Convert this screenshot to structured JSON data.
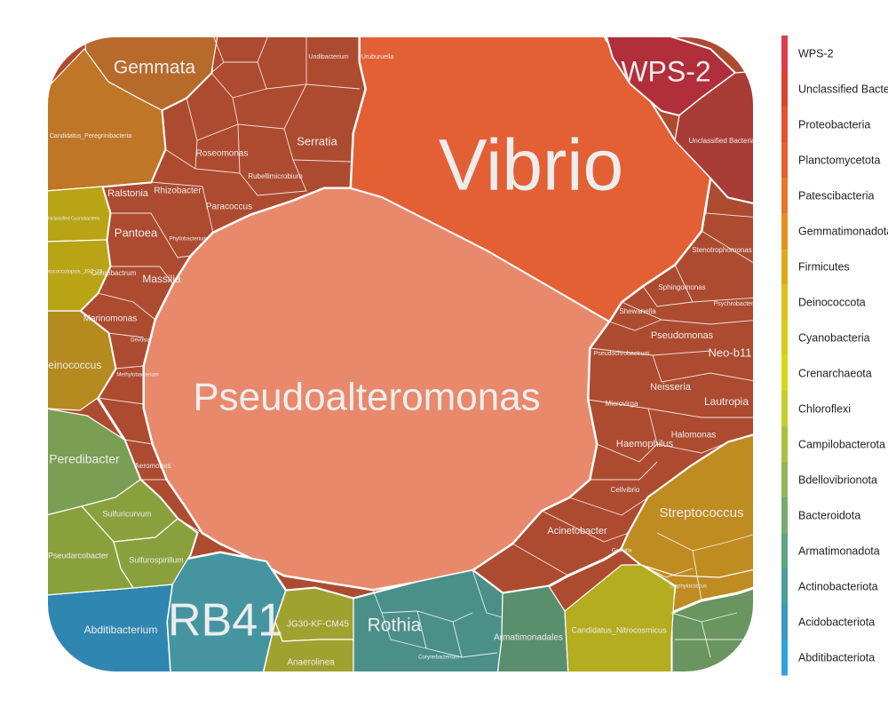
{
  "chart_data": {
    "type": "voronoi-treemap",
    "title": "",
    "legend": {
      "placement": "right",
      "items": [
        {
          "label": "WPS-2",
          "color": "#dd3c4a"
        },
        {
          "label": "Unclassified Bacteria",
          "color": "#d8452f"
        },
        {
          "label": "Proteobacteria",
          "color": "#e2532e"
        },
        {
          "label": "Planctomycetota",
          "color": "#e3612c"
        },
        {
          "label": "Patescibacteria",
          "color": "#e67628"
        },
        {
          "label": "Gemmatimonadota",
          "color": "#e4901f"
        },
        {
          "label": "Firmicutes",
          "color": "#dfa81a"
        },
        {
          "label": "Deinococcota",
          "color": "#dcc216"
        },
        {
          "label": "Cyanobacteria",
          "color": "#d9cc18"
        },
        {
          "label": "Crenarchaeota",
          "color": "#d8d61a"
        },
        {
          "label": "Chloroflexi",
          "color": "#c4cf2c"
        },
        {
          "label": "Campilobacterota",
          "color": "#a8c240"
        },
        {
          "label": "Bdellovibrionota",
          "color": "#8fb756"
        },
        {
          "label": "Bacteroidota",
          "color": "#76ac6c"
        },
        {
          "label": "Armatimonadota",
          "color": "#5ea582"
        },
        {
          "label": "Actinobacteriota",
          "color": "#4a9f9c"
        },
        {
          "label": "Acidobacteriota",
          "color": "#3a9ac0"
        },
        {
          "label": "Abditibacteriota",
          "color": "#33a2de"
        }
      ]
    },
    "cells": [
      {
        "label": "Vibrio",
        "group": "Proteobacteria",
        "size": 52,
        "color": "#e36035",
        "label_color": "#ededed"
      },
      {
        "label": "Pseudoalteromonas",
        "group": "Proteobacteria",
        "size": 34,
        "color": "#e8896b",
        "label_color": "#ededed"
      },
      {
        "label": "RB41",
        "group": "Acidobacteriota",
        "size": 30,
        "color": "#4595a1",
        "label_color": "#ededed"
      },
      {
        "label": "WPS-2",
        "group": "WPS-2",
        "size": 24,
        "color": "#b12f3a",
        "label_color": "#ededed"
      },
      {
        "label": "Gemmata",
        "group": "Planctomycetota",
        "size": 15,
        "color": "#b86a2b",
        "label_color": "#ededed"
      },
      {
        "label": "Rothia",
        "group": "Actinobacteriota",
        "size": 15,
        "color": "#4b8f89",
        "label_color": "#ededed"
      },
      {
        "label": "Streptococcus",
        "group": "Firmicutes",
        "size": 11,
        "color": "#bf8c22",
        "label_color": "#ededed"
      },
      {
        "label": "Peredibacter",
        "group": "Bdellovibrionota",
        "size": 10,
        "color": "#7a9e54",
        "label_color": "#ededed"
      },
      {
        "label": "Armatimonadales",
        "group": "Armatimonadota",
        "size": 8,
        "color": "#5a8f6e",
        "label_color": "#ededed"
      },
      {
        "label": "Serratia",
        "group": "Proteobacteria",
        "size": 8,
        "color": "#ad4b30",
        "label_color": "#ededed"
      },
      {
        "label": "Pantoea",
        "group": "Proteobacteria",
        "size": 8,
        "color": "#ad4b30",
        "label_color": "#ededed"
      },
      {
        "label": "Massilia",
        "group": "Proteobacteria",
        "size": 8,
        "color": "#ad4b30",
        "label_color": "#ededed"
      },
      {
        "label": "Neo-b11",
        "group": "Proteobacteria",
        "size": 8,
        "color": "#ad4b30",
        "label_color": "#ededed"
      },
      {
        "label": "Deinococcus",
        "group": "Deinococcota",
        "size": 7,
        "color": "#b58a1f",
        "label_color": "#ededed"
      },
      {
        "label": "Abditibacterium",
        "group": "Abditibacteriota",
        "size": 7,
        "color": "#2f86b0",
        "label_color": "#ededed"
      },
      {
        "label": "Lautropia",
        "group": "Proteobacteria",
        "size": 7,
        "color": "#ad4b30",
        "label_color": "#ededed"
      },
      {
        "label": "Roseomonas",
        "group": "Proteobacteria",
        "size": 6,
        "color": "#ad4b30",
        "label_color": "#ededed"
      },
      {
        "label": "Ralstonia",
        "group": "Proteobacteria",
        "size": 6,
        "color": "#ad4b30",
        "label_color": "#ededed"
      },
      {
        "label": "Rhizobacter",
        "group": "Proteobacteria",
        "size": 6,
        "color": "#ad4b30",
        "label_color": "#ededed"
      },
      {
        "label": "Paracoccus",
        "group": "Proteobacteria",
        "size": 6,
        "color": "#ad4b30",
        "label_color": "#ededed"
      },
      {
        "label": "Marinomonas",
        "group": "Proteobacteria",
        "size": 6,
        "color": "#ad4b30",
        "label_color": "#ededed"
      },
      {
        "label": "Pseudomonas",
        "group": "Proteobacteria",
        "size": 6,
        "color": "#ad4b30",
        "label_color": "#ededed"
      },
      {
        "label": "Neisseria",
        "group": "Proteobacteria",
        "size": 6,
        "color": "#ad4b30",
        "label_color": "#ededed"
      },
      {
        "label": "Haemophilus",
        "group": "Proteobacteria",
        "size": 6,
        "color": "#ad4b30",
        "label_color": "#ededed"
      },
      {
        "label": "Halomonas",
        "group": "Proteobacteria",
        "size": 6,
        "color": "#ad4b30",
        "label_color": "#ededed"
      },
      {
        "label": "Acinetobacter",
        "group": "Proteobacteria",
        "size": 6,
        "color": "#ad4b30",
        "label_color": "#ededed"
      },
      {
        "label": "Sulfuricurvum",
        "group": "Campilobacterota",
        "size": 6,
        "color": "#8aa03d",
        "label_color": "#ededed"
      },
      {
        "label": "Sulfurospirillum",
        "group": "Campilobacterota",
        "size": 6,
        "color": "#8aa03d",
        "label_color": "#ededed"
      },
      {
        "label": "Pseudarcobacter",
        "group": "Campilobacterota",
        "size": 6,
        "color": "#8aa03d",
        "label_color": "#ededed"
      },
      {
        "label": "JG30-KF-CM45",
        "group": "Chloroflexi",
        "size": 6,
        "color": "#a0a230",
        "label_color": "#ededed"
      },
      {
        "label": "Anaerolinea",
        "group": "Chloroflexi",
        "size": 6,
        "color": "#a0a230",
        "label_color": "#ededed"
      },
      {
        "label": "Candidatus_Nitrocosmicus",
        "group": "Crenarchaeota",
        "size": 6,
        "color": "#b3ad1f",
        "label_color": "#ededed"
      },
      {
        "label": "Candidatus_Peregrinibacteria",
        "group": "Patescibacteria",
        "size": 6,
        "color": "#bf7626",
        "label_color": "#ededed"
      },
      {
        "label": "Unclassified Bacteria",
        "group": "Unclassified Bacteria",
        "size": 6,
        "color": "#a83c36",
        "label_color": "#ededed"
      },
      {
        "label": "Unclassified Cyanobacteria",
        "group": "Cyanobacteria",
        "size": 5,
        "color": "#b8a414",
        "label_color": "#ededed"
      },
      {
        "label": "Leptococcolopsis_JSC_22",
        "group": "Cyanobacteria",
        "size": 5,
        "color": "#b8a414",
        "label_color": "#ededed"
      },
      {
        "label": "Stenotrophomonas",
        "group": "Proteobacteria",
        "size": 4,
        "color": "#ad4b30",
        "label_color": "#ededed"
      },
      {
        "label": "Sphingomonas",
        "group": "Proteobacteria",
        "size": 4,
        "color": "#ad4b30",
        "label_color": "#ededed"
      },
      {
        "label": "Psychrobacter",
        "group": "Proteobacteria",
        "size": 4,
        "color": "#ad4b30",
        "label_color": "#ededed"
      },
      {
        "label": "Shewanella",
        "group": "Proteobacteria",
        "size": 4,
        "color": "#ad4b30",
        "label_color": "#ededed"
      },
      {
        "label": "Pseudochrobactrum",
        "group": "Proteobacteria",
        "size": 4,
        "color": "#ad4b30",
        "label_color": "#ededed"
      },
      {
        "label": "Microvirga",
        "group": "Proteobacteria",
        "size": 4,
        "color": "#ad4b30",
        "label_color": "#ededed"
      },
      {
        "label": "Cellvibrio",
        "group": "Proteobacteria",
        "size": 4,
        "color": "#ad4b30",
        "label_color": "#ededed"
      },
      {
        "label": "Rubellimicrobium",
        "group": "Proteobacteria",
        "size": 4,
        "color": "#ad4b30",
        "label_color": "#ededed"
      },
      {
        "label": "Undibacterium",
        "group": "Proteobacteria",
        "size": 4,
        "color": "#ad4b30",
        "label_color": "#ededed"
      },
      {
        "label": "Uruburuella",
        "group": "Proteobacteria",
        "size": 4,
        "color": "#ad4b30",
        "label_color": "#ededed"
      },
      {
        "label": "Ochrobactrum",
        "group": "Proteobacteria",
        "size": 4,
        "color": "#ad4b30",
        "label_color": "#ededed"
      },
      {
        "label": "Aeromonas",
        "group": "Proteobacteria",
        "size": 4,
        "color": "#ad4b30",
        "label_color": "#ededed"
      },
      {
        "label": "Phyllobacterium",
        "group": "Proteobacteria",
        "size": 3,
        "color": "#ad4b30",
        "label_color": "#ededed"
      },
      {
        "label": "Devosia",
        "group": "Proteobacteria",
        "size": 3,
        "color": "#ad4b30",
        "label_color": "#ededed"
      },
      {
        "label": "Methylobacterium",
        "group": "Proteobacteria",
        "size": 3,
        "color": "#ad4b30",
        "label_color": "#ededed"
      },
      {
        "label": "Gemella",
        "group": "Firmicutes",
        "size": 3,
        "color": "#bf8c22",
        "label_color": "#ededed"
      },
      {
        "label": "Staphylococcus",
        "group": "Firmicutes",
        "size": 3,
        "color": "#bf8c22",
        "label_color": "#ededed"
      },
      {
        "label": "Corynebacterium",
        "group": "Actinobacteriota",
        "size": 3,
        "color": "#4b8f89",
        "label_color": "#ededed"
      }
    ]
  }
}
